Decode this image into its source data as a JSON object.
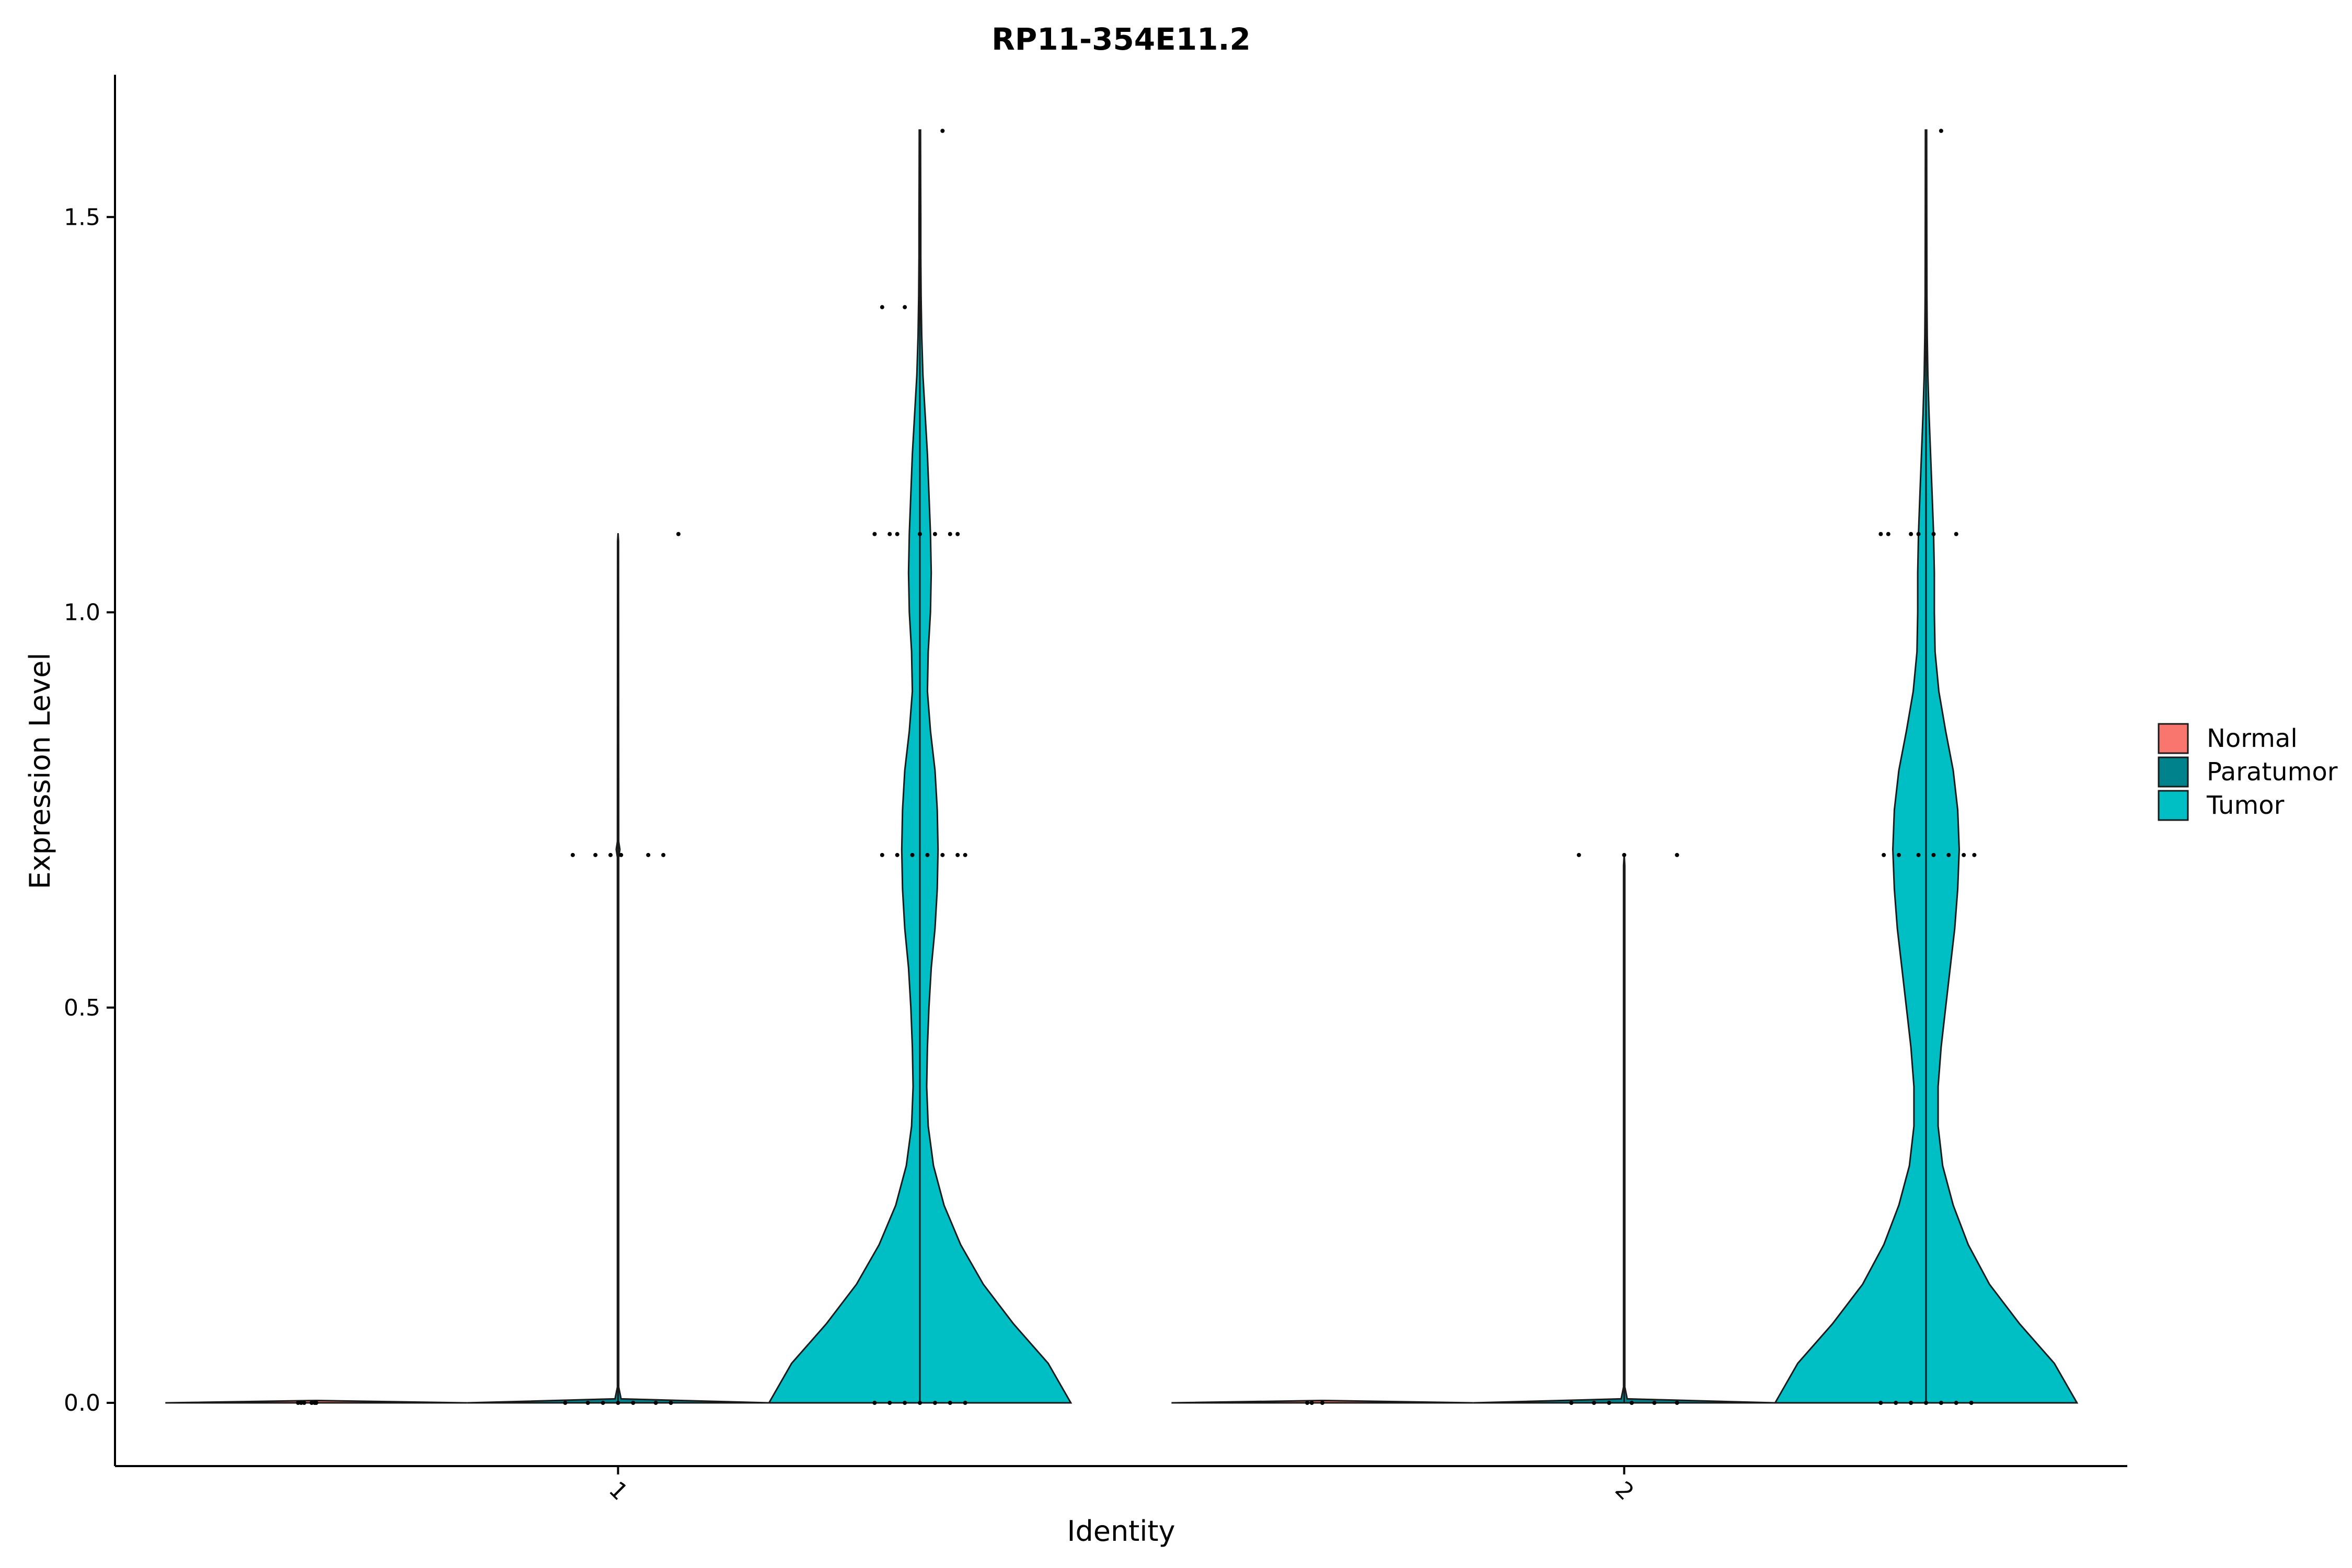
{
  "chart_data": {
    "type": "violin",
    "title": "RP11-354E11.2",
    "xlabel": "Identity",
    "ylabel": "Expression Level",
    "ylim": [
      -0.08,
      1.68
    ],
    "y_ticks": [
      0.0,
      0.5,
      1.0,
      1.5
    ],
    "y_tick_labels": [
      "0.0",
      "0.5",
      "1.0",
      "1.5"
    ],
    "categories": [
      "1",
      "2"
    ],
    "grid": false,
    "legend_position": "right",
    "series": [
      {
        "name": "Normal",
        "color": "#F8766D",
        "groups": [
          {
            "category": "1",
            "max": 0.0,
            "density": [
              [
                0.0,
                1.0
              ],
              [
                0.003,
                0.0
              ]
            ],
            "points": [
              [
                -0.12,
                0.0
              ],
              [
                -0.1,
                0.0
              ],
              [
                -0.08,
                0.0
              ],
              [
                -0.03,
                0.0
              ],
              [
                -0.01,
                0.0
              ],
              [
                0.0,
                0.0
              ]
            ]
          },
          {
            "category": "2",
            "max": 0.0,
            "density": [
              [
                0.0,
                1.0
              ],
              [
                0.003,
                0.0
              ]
            ],
            "points": [
              [
                -0.1,
                0.0
              ],
              [
                -0.07,
                0.0
              ],
              [
                0.0,
                0.0
              ]
            ]
          }
        ]
      },
      {
        "name": "Paratumor",
        "color": "#00828C",
        "groups": [
          {
            "category": "1",
            "max": 1.1,
            "density": [
              [
                0.0,
                1.0
              ],
              [
                0.005,
                0.02
              ],
              [
                0.02,
                0.004
              ],
              [
                0.69,
                0.004
              ],
              [
                0.7,
                0.012
              ],
              [
                0.71,
                0.004
              ],
              [
                1.09,
                0.003
              ],
              [
                1.1,
                0.0
              ]
            ],
            "points": [
              [
                -0.35,
                0.0
              ],
              [
                -0.2,
                0.0
              ],
              [
                -0.1,
                0.0
              ],
              [
                0.0,
                0.0
              ],
              [
                0.1,
                0.0
              ],
              [
                0.25,
                0.0
              ],
              [
                0.35,
                0.0
              ],
              [
                -0.3,
                0.693
              ],
              [
                -0.15,
                0.693
              ],
              [
                -0.05,
                0.693
              ],
              [
                0.02,
                0.693
              ],
              [
                0.2,
                0.693
              ],
              [
                0.3,
                0.693
              ],
              [
                0.4,
                1.099
              ]
            ]
          },
          {
            "category": "2",
            "max": 0.693,
            "density": [
              [
                0.0,
                1.0
              ],
              [
                0.005,
                0.02
              ],
              [
                0.02,
                0.004
              ],
              [
                0.68,
                0.004
              ],
              [
                0.693,
                0.0
              ]
            ],
            "points": [
              [
                -0.35,
                0.0
              ],
              [
                -0.2,
                0.0
              ],
              [
                -0.1,
                0.0
              ],
              [
                0.05,
                0.0
              ],
              [
                0.2,
                0.0
              ],
              [
                0.35,
                0.0
              ],
              [
                -0.3,
                0.693
              ],
              [
                0.0,
                0.693
              ],
              [
                0.35,
                0.693
              ]
            ]
          }
        ]
      },
      {
        "name": "Tumor",
        "color": "#00BFC4",
        "groups": [
          {
            "category": "1",
            "max": 1.61,
            "density": [
              [
                0.0,
                1.0
              ],
              [
                0.05,
                0.85
              ],
              [
                0.1,
                0.62
              ],
              [
                0.15,
                0.42
              ],
              [
                0.2,
                0.27
              ],
              [
                0.25,
                0.16
              ],
              [
                0.3,
                0.09
              ],
              [
                0.35,
                0.055
              ],
              [
                0.4,
                0.045
              ],
              [
                0.45,
                0.05
              ],
              [
                0.5,
                0.06
              ],
              [
                0.55,
                0.075
              ],
              [
                0.6,
                0.1
              ],
              [
                0.65,
                0.115
              ],
              [
                0.7,
                0.12
              ],
              [
                0.75,
                0.115
              ],
              [
                0.8,
                0.1
              ],
              [
                0.85,
                0.07
              ],
              [
                0.9,
                0.05
              ],
              [
                0.95,
                0.055
              ],
              [
                1.0,
                0.07
              ],
              [
                1.05,
                0.075
              ],
              [
                1.1,
                0.07
              ],
              [
                1.15,
                0.06
              ],
              [
                1.2,
                0.05
              ],
              [
                1.25,
                0.035
              ],
              [
                1.3,
                0.02
              ],
              [
                1.35,
                0.012
              ],
              [
                1.4,
                0.008
              ],
              [
                1.45,
                0.006
              ],
              [
                1.5,
                0.006
              ],
              [
                1.55,
                0.005
              ],
              [
                1.61,
                0.004
              ]
            ],
            "points": [
              [
                -0.3,
                0.0
              ],
              [
                -0.2,
                0.0
              ],
              [
                -0.1,
                0.0
              ],
              [
                0.0,
                0.0
              ],
              [
                0.1,
                0.0
              ],
              [
                0.2,
                0.0
              ],
              [
                0.3,
                0.0
              ],
              [
                -0.25,
                0.693
              ],
              [
                -0.15,
                0.693
              ],
              [
                -0.05,
                0.693
              ],
              [
                0.05,
                0.693
              ],
              [
                0.15,
                0.693
              ],
              [
                0.25,
                0.693
              ],
              [
                0.3,
                0.693
              ],
              [
                -0.3,
                1.099
              ],
              [
                -0.2,
                1.099
              ],
              [
                -0.15,
                1.099
              ],
              [
                0.0,
                1.099
              ],
              [
                0.1,
                1.099
              ],
              [
                0.2,
                1.099
              ],
              [
                0.25,
                1.099
              ],
              [
                -0.25,
                1.386
              ],
              [
                -0.1,
                1.386
              ],
              [
                0.15,
                1.609
              ]
            ]
          },
          {
            "category": "2",
            "max": 1.61,
            "density": [
              [
                0.0,
                1.0
              ],
              [
                0.05,
                0.85
              ],
              [
                0.1,
                0.62
              ],
              [
                0.15,
                0.42
              ],
              [
                0.2,
                0.28
              ],
              [
                0.25,
                0.18
              ],
              [
                0.3,
                0.11
              ],
              [
                0.35,
                0.08
              ],
              [
                0.4,
                0.08
              ],
              [
                0.45,
                0.1
              ],
              [
                0.5,
                0.13
              ],
              [
                0.55,
                0.16
              ],
              [
                0.6,
                0.19
              ],
              [
                0.65,
                0.21
              ],
              [
                0.7,
                0.22
              ],
              [
                0.75,
                0.21
              ],
              [
                0.8,
                0.18
              ],
              [
                0.85,
                0.13
              ],
              [
                0.9,
                0.085
              ],
              [
                0.95,
                0.06
              ],
              [
                1.0,
                0.055
              ],
              [
                1.05,
                0.055
              ],
              [
                1.1,
                0.05
              ],
              [
                1.15,
                0.04
              ],
              [
                1.2,
                0.03
              ],
              [
                1.25,
                0.02
              ],
              [
                1.3,
                0.012
              ],
              [
                1.35,
                0.008
              ],
              [
                1.4,
                0.006
              ],
              [
                1.5,
                0.005
              ],
              [
                1.61,
                0.004
              ]
            ],
            "points": [
              [
                -0.3,
                0.0
              ],
              [
                -0.2,
                0.0
              ],
              [
                -0.1,
                0.0
              ],
              [
                0.0,
                0.0
              ],
              [
                0.1,
                0.0
              ],
              [
                0.2,
                0.0
              ],
              [
                0.3,
                0.0
              ],
              [
                -0.28,
                0.693
              ],
              [
                -0.18,
                0.693
              ],
              [
                -0.05,
                0.693
              ],
              [
                0.05,
                0.693
              ],
              [
                0.15,
                0.693
              ],
              [
                0.25,
                0.693
              ],
              [
                0.32,
                0.693
              ],
              [
                -0.3,
                1.099
              ],
              [
                -0.25,
                1.099
              ],
              [
                -0.1,
                1.099
              ],
              [
                -0.05,
                1.099
              ],
              [
                0.05,
                1.099
              ],
              [
                0.2,
                1.099
              ],
              [
                0.1,
                1.609
              ]
            ]
          }
        ]
      }
    ]
  }
}
